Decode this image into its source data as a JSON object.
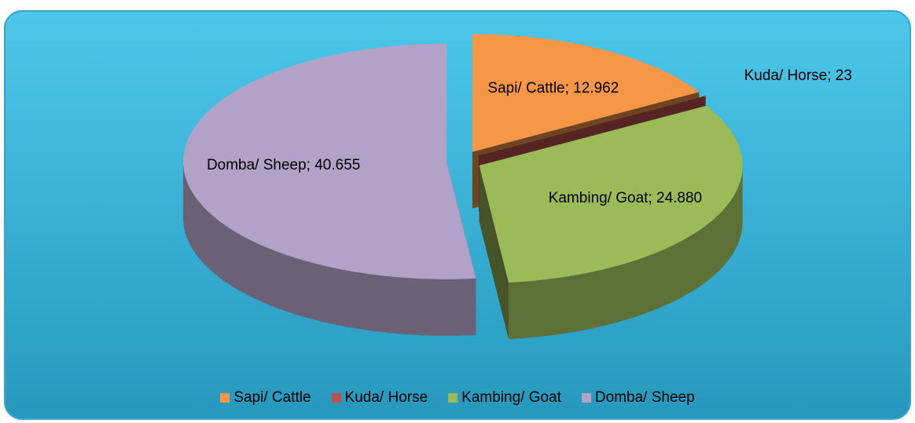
{
  "chart_data": {
    "type": "pie",
    "categories": [
      "Sapi/ Cattle",
      "Kuda/ Horse",
      "Kambing/ Goat",
      "Domba/ Sheep"
    ],
    "values": [
      12962,
      23,
      24880,
      40655
    ],
    "value_labels": [
      "Sapi/ Cattle; 12.962",
      "Kuda/ Horse; 23",
      "Kambing/ Goat; 24.880",
      "Domba/ Sheep; 40.655"
    ],
    "colors": [
      "#f79646",
      "#c0504d",
      "#9bbb59",
      "#b3a2c7"
    ],
    "legend": "bottom"
  }
}
